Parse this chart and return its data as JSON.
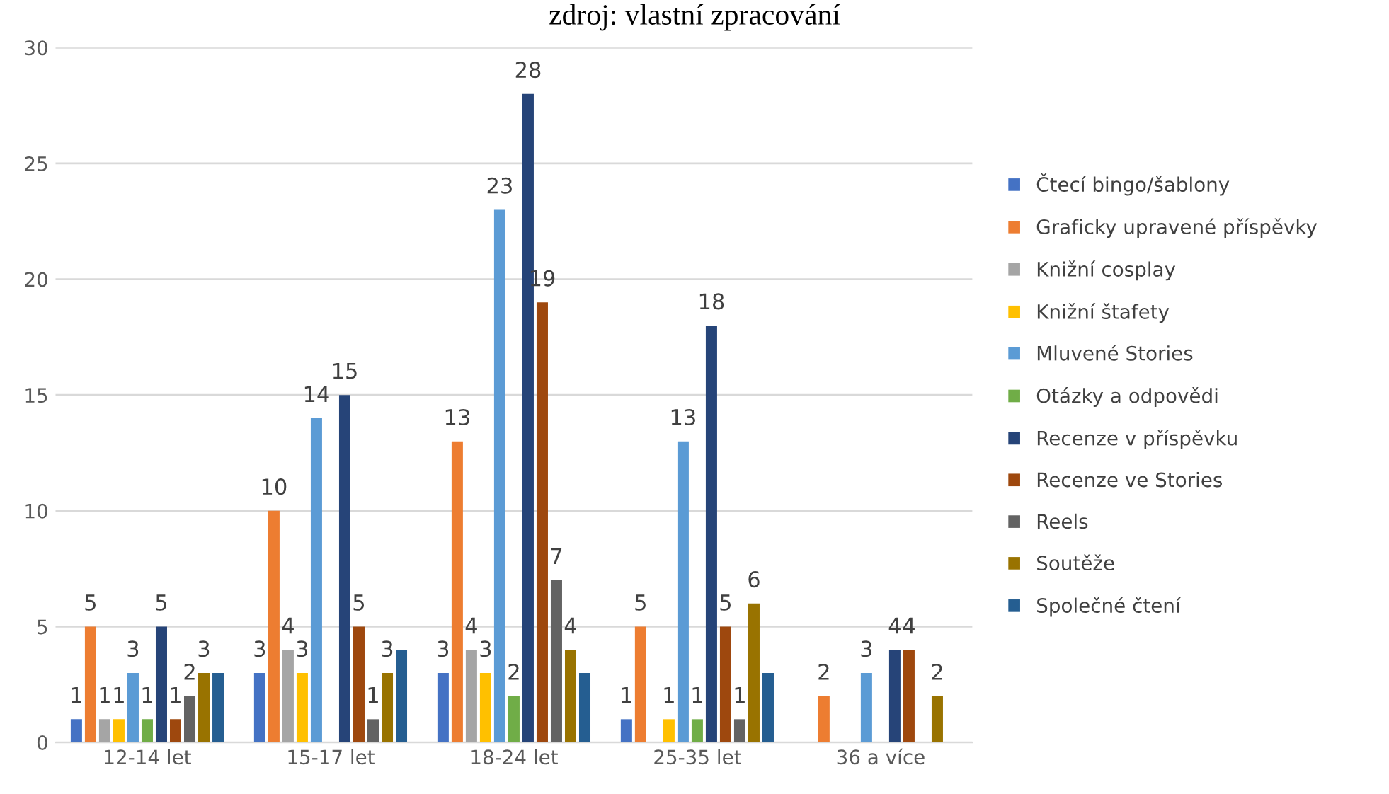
{
  "chart_data": {
    "type": "bar",
    "title": "zdroj: vlastní zpracování",
    "categories": [
      "12-14 let",
      "15-17 let",
      "18-24 let",
      "25-35 let",
      "36 a více"
    ],
    "ylim": [
      0,
      30
    ],
    "yticks": [
      0,
      5,
      10,
      15,
      20,
      25,
      30
    ],
    "grid": "y",
    "legend": "right",
    "series": [
      {
        "name": "Čtecí bingo/šablony",
        "color": "#4472c4",
        "values": [
          1,
          3,
          3,
          1,
          null
        ],
        "value_labels": [
          "1",
          "3",
          "3",
          "1",
          null
        ]
      },
      {
        "name": "Graficky upravené příspěvky",
        "color": "#ed7d31",
        "values": [
          5,
          10,
          13,
          5,
          2
        ],
        "value_labels": [
          "5",
          "10",
          "13",
          "5",
          "2"
        ]
      },
      {
        "name": "Knižní cosplay",
        "color": "#a5a5a5",
        "values": [
          1,
          4,
          4,
          null,
          null
        ],
        "value_labels": [
          "1",
          "4",
          "4",
          null,
          null
        ]
      },
      {
        "name": "Knižní štafety",
        "color": "#ffc000",
        "values": [
          1,
          3,
          3,
          1,
          null
        ],
        "value_labels": [
          "1",
          "3",
          "3",
          "1",
          null
        ]
      },
      {
        "name": "Mluvené Stories",
        "color": "#5b9bd5",
        "values": [
          3,
          14,
          23,
          13,
          3
        ],
        "value_labels": [
          "3",
          "14",
          "23",
          "13",
          "3"
        ]
      },
      {
        "name": "Otázky a odpovědi",
        "color": "#70ad47",
        "values": [
          1,
          null,
          2,
          1,
          null
        ],
        "value_labels": [
          "1",
          null,
          "2",
          "1",
          null
        ]
      },
      {
        "name": "Recenze v příspěvku",
        "color": "#264478",
        "values": [
          5,
          15,
          28,
          18,
          4
        ],
        "value_labels": [
          "5",
          "15",
          "28",
          "18",
          "4"
        ]
      },
      {
        "name": "Recenze ve Stories",
        "color": "#9e480e",
        "values": [
          1,
          5,
          19,
          5,
          4
        ],
        "value_labels": [
          "1",
          "5",
          "19",
          "5",
          "4"
        ]
      },
      {
        "name": "Reels",
        "color": "#636363",
        "values": [
          2,
          1,
          7,
          1,
          null
        ],
        "value_labels": [
          "2",
          "1",
          "7",
          "1",
          null
        ]
      },
      {
        "name": "Soutěže",
        "color": "#997300",
        "values": [
          3,
          3,
          4,
          6,
          2
        ],
        "value_labels": [
          "3",
          "3",
          "4",
          "6",
          "2"
        ]
      },
      {
        "name": "Společné čtení",
        "color": "#255e91",
        "values": [
          3,
          4,
          3,
          3,
          null
        ],
        "value_labels": [
          null,
          null,
          null,
          null,
          null
        ]
      }
    ]
  }
}
